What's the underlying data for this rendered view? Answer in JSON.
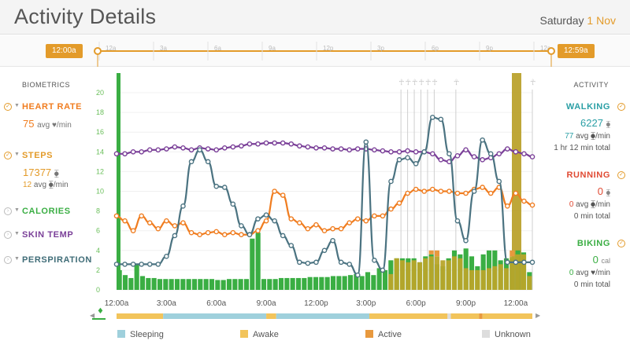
{
  "header": {
    "title": "Activity Details",
    "weekday": "Saturday",
    "day": "1 Nov"
  },
  "timeline": {
    "start_label": "12:00a",
    "end_label": "12:59a",
    "ticks": [
      "12a",
      "3a",
      "6a",
      "9a",
      "12p",
      "3p",
      "6p",
      "9p",
      "12a"
    ]
  },
  "biometrics": {
    "heading": "BIOMETRICS",
    "heart_rate": {
      "label": "HEART RATE",
      "value": "75",
      "unit": "avg ♥/min",
      "color": "#f07d20"
    },
    "steps": {
      "label": "STEPS",
      "value": "17377",
      "value_unit": "⧳",
      "sub_value": "12",
      "sub_unit": "avg ⧳/min",
      "color": "#e39b2a"
    },
    "calories": {
      "label": "CALORIES",
      "color": "#3aae43"
    },
    "skin_temp": {
      "label": "SKIN TEMP",
      "color": "#7a3f98"
    },
    "perspiration": {
      "label": "PERSPIRATION",
      "color": "#3f6c77"
    }
  },
  "activity": {
    "heading": "ACTIVITY",
    "walking": {
      "label": "WALKING",
      "value": "6227",
      "unit": "⧳",
      "avg": "77",
      "avg_unit": "avg ⧳/min",
      "total": "1 hr 12 min total",
      "color": "#2a9fa5"
    },
    "running": {
      "label": "RUNNING",
      "value": "0",
      "unit": "⧳",
      "avg": "0",
      "avg_unit": "avg ⧳/min",
      "total": "0 min total",
      "color": "#e04a33"
    },
    "biking": {
      "label": "BIKING",
      "value": "0",
      "unit": "cal",
      "avg": "0",
      "avg_unit": "avg ♥/min",
      "total": "0 min total",
      "color": "#3aae43"
    }
  },
  "legend": [
    {
      "label": "Sleeping",
      "color": "#9fd0dc"
    },
    {
      "label": "Awake",
      "color": "#f2c45b"
    },
    {
      "label": "Active",
      "color": "#e8993e"
    },
    {
      "label": "Unknown",
      "color": "#dddddd"
    }
  ],
  "chart_data": {
    "type": "line",
    "title": "",
    "x_tick_labels": [
      "12:00a",
      "3:00a",
      "6:00a",
      "9:00a",
      "12:00p",
      "3:00p",
      "6:00p",
      "9:00p",
      "12:00a"
    ],
    "y_tick_labels": [
      "0",
      "2",
      "4",
      "6",
      "8",
      "10",
      "12",
      "14",
      "16",
      "18",
      "20"
    ],
    "ylim": [
      0,
      20
    ],
    "xlim_hours": [
      0,
      25
    ],
    "series": [
      {
        "name": "Heart rate",
        "color": "#f07d20",
        "x": [
          0,
          0.5,
          1,
          1.5,
          2,
          2.5,
          3,
          3.5,
          4,
          4.5,
          5,
          5.5,
          6,
          6.5,
          7,
          7.5,
          8,
          8.5,
          9,
          9.5,
          10,
          10.5,
          11,
          11.5,
          12,
          12.5,
          13,
          13.5,
          14,
          14.5,
          15,
          15.5,
          16,
          16.5,
          17,
          17.5,
          18,
          18.5,
          19,
          19.5,
          20,
          20.5,
          21,
          21.5,
          22,
          22.5,
          23,
          23.5,
          24,
          24.5,
          25
        ],
        "values": [
          7.5,
          7.0,
          6.0,
          7.5,
          6.8,
          6.2,
          7.0,
          6.5,
          6.8,
          5.8,
          5.6,
          5.8,
          5.9,
          5.6,
          5.8,
          5.6,
          5.6,
          6.0,
          7.0,
          10.0,
          9.6,
          7.2,
          6.8,
          6.2,
          6.6,
          6.0,
          6.2,
          6.2,
          6.8,
          7.2,
          7.0,
          7.5,
          7.5,
          8.2,
          8.8,
          9.8,
          10.2,
          10.0,
          10.2,
          10.0,
          10.0,
          9.8,
          9.8,
          10.2,
          10.4,
          9.8,
          10.4,
          8.5,
          9.8,
          9.0,
          8.6
        ]
      },
      {
        "name": "Skin temp",
        "color": "#7a3f98",
        "x": [
          0,
          0.5,
          1,
          1.5,
          2,
          2.5,
          3,
          3.5,
          4,
          4.5,
          5,
          5.5,
          6,
          6.5,
          7,
          7.5,
          8,
          8.5,
          9,
          9.5,
          10,
          10.5,
          11,
          11.5,
          12,
          12.5,
          13,
          13.5,
          14,
          14.5,
          15,
          15.5,
          16,
          16.5,
          17,
          17.5,
          18,
          18.5,
          19,
          19.5,
          20,
          20.5,
          21,
          21.5,
          22,
          22.5,
          23,
          23.5,
          24,
          24.5,
          25
        ],
        "values": [
          13.8,
          13.8,
          14.0,
          14.0,
          14.2,
          14.2,
          14.3,
          14.5,
          14.4,
          14.2,
          14.4,
          14.3,
          14.2,
          14.4,
          14.5,
          14.6,
          14.8,
          14.8,
          14.9,
          14.9,
          14.9,
          14.8,
          14.6,
          14.5,
          14.4,
          14.4,
          14.3,
          14.3,
          14.2,
          14.3,
          14.3,
          14.2,
          14.1,
          14.0,
          14.0,
          14.1,
          14.0,
          14.0,
          13.8,
          13.2,
          13.0,
          13.6,
          14.2,
          13.5,
          13.2,
          13.4,
          13.8,
          14.3,
          14.0,
          13.8,
          13.5
        ]
      },
      {
        "name": "Perspiration",
        "color": "#4b7381",
        "x": [
          0,
          0.5,
          1,
          1.5,
          2,
          2.5,
          3,
          3.5,
          4,
          4.5,
          5,
          5.5,
          6,
          6.5,
          7,
          7.5,
          8,
          8.5,
          9,
          9.5,
          10,
          10.5,
          11,
          11.5,
          12,
          12.5,
          13,
          13.5,
          14,
          14.5,
          15,
          15.5,
          16,
          16.5,
          17,
          17.5,
          18,
          18.5,
          19,
          19.5,
          20,
          20.5,
          21,
          21.5,
          22,
          22.5,
          23,
          23.5,
          24,
          24.5,
          25
        ],
        "values": [
          2.6,
          2.6,
          2.6,
          2.6,
          2.6,
          2.6,
          3.4,
          5.5,
          8.5,
          13.0,
          14.2,
          13.0,
          10.5,
          10.4,
          8.7,
          6.5,
          5.6,
          7.2,
          7.6,
          7.0,
          5.5,
          4.5,
          2.8,
          2.7,
          2.8,
          4.0,
          5.0,
          2.8,
          2.6,
          1.5,
          15.0,
          3.0,
          2.0,
          11.0,
          13.2,
          13.4,
          12.8,
          14.0,
          17.5,
          17.3,
          13.8,
          7.0,
          5.0,
          10.0,
          15.2,
          13.8,
          11.0,
          2.8,
          2.8,
          2.8,
          2.8
        ]
      }
    ],
    "bars": {
      "name": "Calories",
      "color": "#3aae43",
      "values": [
        2.0,
        1.5,
        1.2,
        2.6,
        1.4,
        1.2,
        1.2,
        1.1,
        1.1,
        1.1,
        1.1,
        1.1,
        1.1,
        1.1,
        1.1,
        1.1,
        1.1,
        1.0,
        1.0,
        1.1,
        1.1,
        1.1,
        1.1,
        5.2,
        5.8,
        1.1,
        1.1,
        1.1,
        1.2,
        1.2,
        1.2,
        1.2,
        1.2,
        1.3,
        1.3,
        1.3,
        1.3,
        1.4,
        1.4,
        1.4,
        1.5,
        1.6,
        1.4,
        1.8,
        1.5,
        2.2,
        2.0,
        3.0,
        3.2,
        3.2,
        3.2,
        3.2,
        2.8,
        3.4,
        3.6,
        2.6,
        2.4,
        3.2,
        4.0,
        3.6,
        4.2,
        3.4,
        2.4,
        3.6,
        4.0,
        4.0,
        3.0,
        3.2,
        3.2,
        4.0,
        3.8,
        1.8
      ],
      "step_values": [
        0,
        0,
        0,
        0,
        0,
        0,
        0,
        0,
        0,
        0,
        0,
        0,
        0,
        0,
        0,
        0,
        0,
        0,
        0,
        0,
        0,
        0,
        0,
        0,
        0,
        0,
        0,
        0,
        0,
        0,
        0,
        0,
        0,
        0,
        0,
        0,
        0,
        0,
        0,
        0,
        0,
        0,
        0,
        0,
        0,
        0,
        0,
        1.6,
        3.2,
        3.0,
        2.8,
        3.0,
        2.8,
        3.2,
        3.4,
        3.4,
        3.0,
        3.0,
        3.4,
        3.2,
        2.2,
        2.0,
        2.0,
        2.0,
        2.2,
        2.4,
        2.6,
        2.2,
        3.4,
        3.6,
        3.6,
        1.4
      ],
      "active_values": [
        0,
        0,
        0,
        0,
        0,
        0,
        0,
        0,
        0,
        0,
        0,
        0,
        0,
        0,
        0,
        0,
        0,
        0,
        0,
        0,
        0,
        0,
        0,
        0,
        0,
        0,
        0,
        0,
        0,
        0,
        0,
        0,
        0,
        0,
        0,
        0,
        0,
        0,
        0,
        0,
        0,
        0,
        0,
        0,
        0,
        0,
        0,
        0,
        0,
        0,
        0,
        0,
        0,
        0,
        0.4,
        0.6,
        0,
        0,
        0,
        0,
        0,
        0,
        0,
        0,
        0,
        0,
        0,
        0,
        0.6,
        0,
        0,
        0
      ]
    },
    "walking_markers_hours": [
      17.1,
      17.5,
      17.9,
      18.3,
      18.7,
      19.1,
      20.4,
      25.0
    ]
  }
}
